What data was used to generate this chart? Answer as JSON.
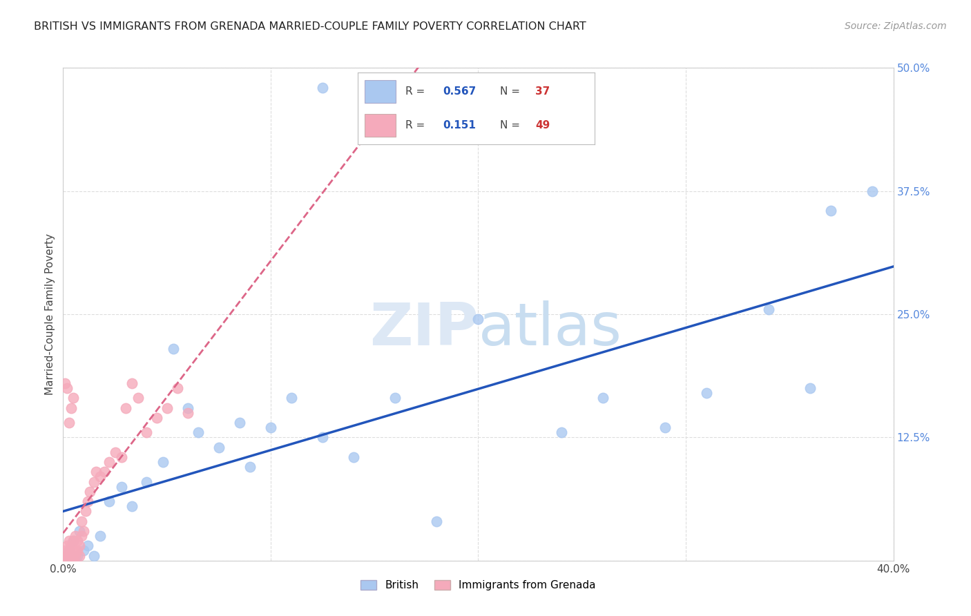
{
  "title": "BRITISH VS IMMIGRANTS FROM GRENADA MARRIED-COUPLE FAMILY POVERTY CORRELATION CHART",
  "source": "Source: ZipAtlas.com",
  "ylabel": "Married-Couple Family Poverty",
  "xlim": [
    0.0,
    0.4
  ],
  "ylim": [
    0.0,
    0.5
  ],
  "xticks": [
    0.0,
    0.1,
    0.2,
    0.3,
    0.4
  ],
  "yticks": [
    0.0,
    0.125,
    0.25,
    0.375,
    0.5
  ],
  "watermark": "ZIPatlas",
  "legend_R_british": "0.567",
  "legend_N_british": "37",
  "legend_R_grenada": "0.151",
  "legend_N_grenada": "49",
  "legend_label_british": "British",
  "legend_label_grenada": "Immigrants from Grenada",
  "british_color": "#aac8f0",
  "british_line_color": "#2255bb",
  "grenada_color": "#f5aabb",
  "grenada_line_color": "#dd6688",
  "british_x": [
    0.002,
    0.003,
    0.004,
    0.005,
    0.007,
    0.008,
    0.01,
    0.012,
    0.015,
    0.018,
    0.022,
    0.028,
    0.033,
    0.04,
    0.048,
    0.053,
    0.06,
    0.065,
    0.075,
    0.085,
    0.09,
    0.1,
    0.11,
    0.125,
    0.14,
    0.16,
    0.18,
    0.2,
    0.24,
    0.26,
    0.29,
    0.31,
    0.34,
    0.36,
    0.37,
    0.39,
    0.125
  ],
  "british_y": [
    0.005,
    0.01,
    0.005,
    0.02,
    0.005,
    0.03,
    0.01,
    0.015,
    0.005,
    0.025,
    0.06,
    0.075,
    0.055,
    0.08,
    0.1,
    0.215,
    0.155,
    0.13,
    0.115,
    0.14,
    0.095,
    0.135,
    0.165,
    0.125,
    0.105,
    0.165,
    0.04,
    0.245,
    0.13,
    0.165,
    0.135,
    0.17,
    0.255,
    0.175,
    0.355,
    0.375,
    0.48
  ],
  "grenada_x": [
    0.001,
    0.001,
    0.001,
    0.002,
    0.002,
    0.002,
    0.003,
    0.003,
    0.003,
    0.003,
    0.004,
    0.004,
    0.004,
    0.005,
    0.005,
    0.005,
    0.006,
    0.006,
    0.006,
    0.007,
    0.007,
    0.008,
    0.008,
    0.009,
    0.009,
    0.01,
    0.011,
    0.012,
    0.013,
    0.015,
    0.016,
    0.018,
    0.02,
    0.022,
    0.025,
    0.028,
    0.03,
    0.033,
    0.036,
    0.04,
    0.045,
    0.05,
    0.055,
    0.06,
    0.003,
    0.004,
    0.005,
    0.002,
    0.001
  ],
  "grenada_y": [
    0.0,
    0.005,
    0.01,
    0.0,
    0.005,
    0.015,
    0.0,
    0.005,
    0.01,
    0.02,
    0.0,
    0.005,
    0.015,
    0.0,
    0.005,
    0.02,
    0.005,
    0.01,
    0.025,
    0.01,
    0.02,
    0.005,
    0.015,
    0.025,
    0.04,
    0.03,
    0.05,
    0.06,
    0.07,
    0.08,
    0.09,
    0.085,
    0.09,
    0.1,
    0.11,
    0.105,
    0.155,
    0.18,
    0.165,
    0.13,
    0.145,
    0.155,
    0.175,
    0.15,
    0.14,
    0.155,
    0.165,
    0.175,
    0.18
  ],
  "background_color": "#ffffff",
  "grid_color": "#dddddd"
}
